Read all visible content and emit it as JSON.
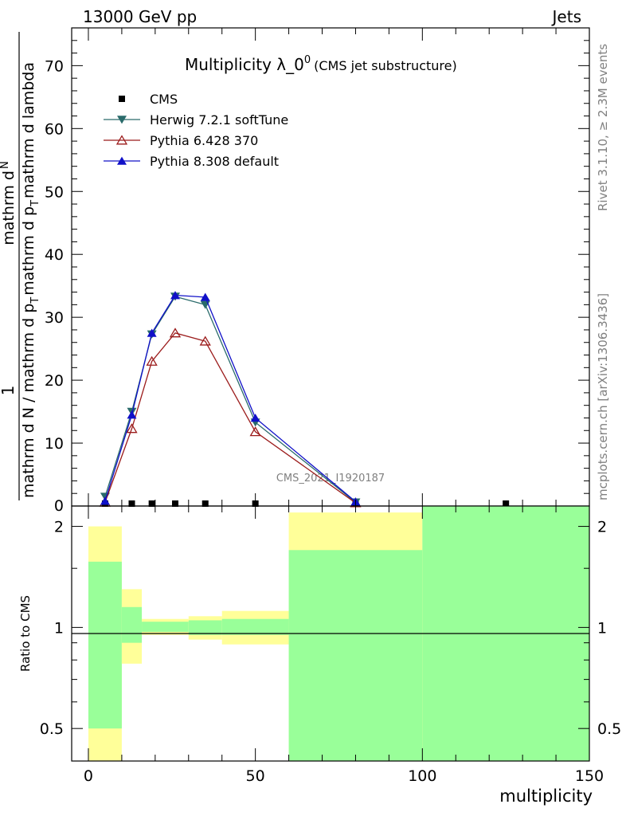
{
  "header": {
    "left": "13000 GeV pp",
    "right": "Jets"
  },
  "side_labels": {
    "top": "Rivet 3.1.10, ≥ 2.3M events",
    "bottom": "mcplots.cern.ch [arXiv:1306.3436]"
  },
  "watermark": "CMS_2021_I1920187",
  "chart_data": [
    {
      "type": "line",
      "title": "Multiplicity λ_0",
      "title_sup": "0",
      "subtitle": "(CMS jet substructure)",
      "ylabel_numerator": "1",
      "ylabel_denominator": "mathrm d N / mathrm d p",
      "ylabel_denominator_tail": "mathrm d p",
      "ylabel_top": "mathrm d",
      "ylabel_top2": "N",
      "ylabel_mid": "mathrm d p",
      "ylabel_mid_tail": "mathrm d lambda",
      "xlim": [
        -5,
        150
      ],
      "ylim": [
        0,
        76
      ],
      "yticks": [
        10,
        20,
        30,
        40,
        50,
        60,
        70
      ],
      "ytick_labels": [
        "10",
        "20",
        "30",
        "40",
        "50",
        "60",
        "70"
      ],
      "y_zero_label": "0",
      "legend_position": "top-left",
      "series": [
        {
          "name": "CMS",
          "marker": "square",
          "color": "#000000",
          "x": [
            5,
            13,
            19,
            26,
            35,
            50,
            80,
            125
          ],
          "y": [
            0.05,
            0.1,
            0.12,
            0.12,
            0.12,
            0.08,
            0.02,
            0.01
          ]
        },
        {
          "name": "Herwig 7.2.1 softTune",
          "marker": "triangle-down",
          "color": "#2a6b6b",
          "x": [
            5,
            13,
            19,
            26,
            35,
            50,
            80
          ],
          "y": [
            1.5,
            15.0,
            27.3,
            33.3,
            32.0,
            13.3,
            0.6
          ]
        },
        {
          "name": "Pythia 6.428 370",
          "marker": "triangle-open",
          "color": "#9b1b1b",
          "x": [
            5,
            13,
            19,
            26,
            35,
            50,
            80
          ],
          "y": [
            0.6,
            12.3,
            23.0,
            27.5,
            26.2,
            11.8,
            0.5
          ]
        },
        {
          "name": "Pythia 8.308 default",
          "marker": "triangle-up",
          "color": "#1010c8",
          "x": [
            5,
            13,
            19,
            26,
            35,
            50,
            80
          ],
          "y": [
            0.8,
            14.5,
            27.5,
            33.5,
            33.2,
            14.0,
            0.7
          ]
        }
      ]
    },
    {
      "type": "area",
      "ylabel": "Ratio to CMS",
      "xlabel": "multiplicity",
      "xlim": [
        -5,
        150
      ],
      "ylim": [
        0.4,
        2.3
      ],
      "log_y": true,
      "xticks": [
        0,
        50,
        100,
        150
      ],
      "xtick_labels": [
        "0",
        "50",
        "100",
        "150"
      ],
      "yticks": [
        0.5,
        1,
        2
      ],
      "ytick_labels": [
        "0.5",
        "1",
        "2"
      ],
      "bands": [
        {
          "x": [
            0,
            10
          ],
          "yellow": [
            0.4,
            2.0
          ],
          "green": [
            0.5,
            1.57
          ]
        },
        {
          "x": [
            10,
            16
          ],
          "yellow": [
            0.78,
            1.3
          ],
          "green": [
            0.9,
            1.15
          ]
        },
        {
          "x": [
            16,
            30
          ],
          "yellow": [
            0.95,
            1.06
          ],
          "green": [
            0.97,
            1.04
          ]
        },
        {
          "x": [
            30,
            40
          ],
          "yellow": [
            0.92,
            1.08
          ],
          "green": [
            0.95,
            1.05
          ]
        },
        {
          "x": [
            40,
            60
          ],
          "yellow": [
            0.89,
            1.12
          ],
          "green": [
            0.95,
            1.06
          ]
        },
        {
          "x": [
            60,
            100
          ],
          "yellow": [
            0.4,
            2.2
          ],
          "green": [
            0.4,
            1.7
          ]
        },
        {
          "x": [
            100,
            150
          ],
          "yellow": [
            0.4,
            2.3
          ],
          "green": [
            0.4,
            2.3
          ]
        }
      ]
    }
  ]
}
